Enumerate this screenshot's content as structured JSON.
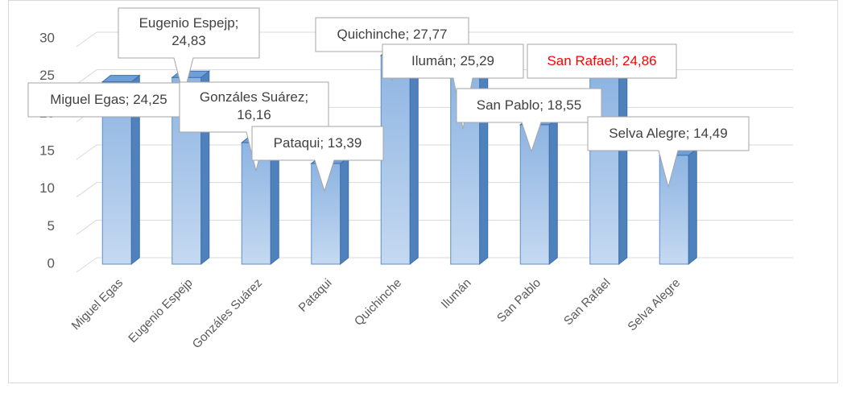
{
  "chart_data": {
    "type": "bar3d",
    "categories": [
      "Miguel Egas",
      "Eugenio Espejp",
      "Gonzáles Suárez",
      "Pataqui",
      "Quichinche",
      "Ilumán",
      "San Pablo",
      "San Rafael",
      "Selva Alegre"
    ],
    "values": [
      24.25,
      24.83,
      16.16,
      13.39,
      27.77,
      25.29,
      18.55,
      24.86,
      14.49
    ],
    "value_labels": [
      "Miguel Egas; 24,25",
      "Eugenio Espejp; 24,83",
      "Gonzáles Suárez; 16,16",
      "Pataqui; 13,39",
      "Quichinche; 27,77",
      "Ilumán; 25,29",
      "San Pablo; 18,55",
      "San Rafael; 24,86",
      "Selva Alegre; 14,49"
    ],
    "value_label_colors": [
      "#404040",
      "#404040",
      "#404040",
      "#404040",
      "#404040",
      "#404040",
      "#404040",
      "#ff0000",
      "#404040"
    ],
    "color": "#9dc3e6",
    "ylim": [
      0,
      30
    ],
    "yticks": [
      0,
      5,
      10,
      15,
      20,
      25,
      30
    ],
    "grid": true
  }
}
